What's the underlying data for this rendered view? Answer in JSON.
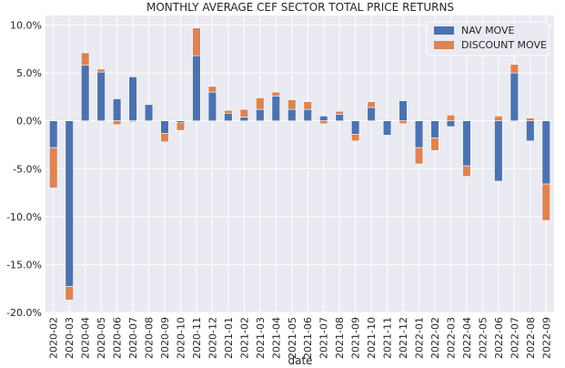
{
  "chart_data": {
    "type": "bar",
    "stacked": true,
    "title": "MONTHLY AVERAGE CEF SECTOR TOTAL PRICE RETURNS",
    "xlabel": "date",
    "ylabel": "",
    "ylim": [
      -20,
      11
    ],
    "yticks": [
      -20,
      -15,
      -10,
      -5,
      0,
      5,
      10
    ],
    "ytick_labels": [
      "-20.0%",
      "-15.0%",
      "-10.0%",
      "-5.0%",
      "0.0%",
      "5.0%",
      "10.0%"
    ],
    "grid": true,
    "legend_position": "top-right",
    "categories": [
      "2020-02",
      "2020-03",
      "2020-04",
      "2020-05",
      "2020-06",
      "2020-07",
      "2020-08",
      "2020-09",
      "2020-10",
      "2020-11",
      "2020-12",
      "2021-01",
      "2021-02",
      "2021-03",
      "2021-04",
      "2021-05",
      "2021-06",
      "2021-07",
      "2021-08",
      "2021-09",
      "2021-10",
      "2021-11",
      "2021-12",
      "2022-01",
      "2022-02",
      "2022-03",
      "2022-04",
      "2022-05",
      "2022-06",
      "2022-07",
      "2022-08",
      "2022-09"
    ],
    "series": [
      {
        "name": "NAV MOVE",
        "color": "#4c72b0",
        "values": [
          -2.8,
          -17.3,
          5.8,
          5.1,
          2.3,
          4.6,
          1.7,
          -1.3,
          -0.2,
          6.8,
          3.0,
          0.8,
          0.4,
          1.2,
          2.6,
          1.2,
          1.2,
          0.5,
          0.7,
          -1.4,
          1.4,
          -1.5,
          2.1,
          -2.8,
          -1.8,
          -0.6,
          -4.7,
          0.0,
          -6.3,
          5.0,
          -2.1,
          -6.6
        ]
      },
      {
        "name": "DISCOUNT MOVE",
        "color": "#dd8452",
        "values": [
          -4.2,
          -1.4,
          1.3,
          0.3,
          -0.4,
          -0.1,
          0.0,
          -0.9,
          -0.8,
          2.9,
          0.6,
          0.3,
          0.8,
          1.2,
          0.4,
          1.0,
          0.8,
          -0.3,
          0.3,
          -0.7,
          0.6,
          0.0,
          -0.3,
          -1.7,
          -1.3,
          0.6,
          -1.1,
          0.0,
          0.5,
          0.9,
          0.3,
          -3.8
        ]
      }
    ]
  }
}
